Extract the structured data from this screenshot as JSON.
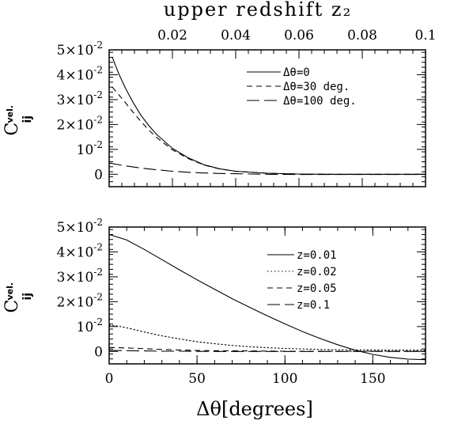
{
  "chart_data": [
    {
      "type": "line",
      "panel": "top",
      "title": "",
      "xlabel": "",
      "top_axis_label": "upper redshift z₂",
      "top_axis_ticks": [
        "0.02",
        "0.04",
        "0.06",
        "0.08",
        "0.1"
      ],
      "top_axis_tick_values": [
        0.02,
        0.04,
        0.06,
        0.08,
        0.1
      ],
      "top_axis_range": [
        0.0,
        0.1
      ],
      "ylabel": "C",
      "ylabel_sup": "vel.",
      "ylabel_sub": "ij",
      "ylim": [
        -0.005,
        0.05
      ],
      "y_ticks": [
        {
          "value": 0.05,
          "mantissa": "5×10",
          "exponent": "-2"
        },
        {
          "value": 0.04,
          "mantissa": "4×10",
          "exponent": "-2"
        },
        {
          "value": 0.03,
          "mantissa": "3×10",
          "exponent": "-2"
        },
        {
          "value": 0.02,
          "mantissa": "2×10",
          "exponent": "-2"
        },
        {
          "value": 0.01,
          "mantissa": "10",
          "exponent": "-2"
        },
        {
          "value": 0.0,
          "mantissa": "0",
          "exponent": ""
        }
      ],
      "legend_position": "top-right",
      "series": [
        {
          "name": "Δθ=0",
          "line_style": "solid",
          "x": [
            0.001,
            0.003,
            0.005,
            0.0075,
            0.01,
            0.0125,
            0.015,
            0.02,
            0.025,
            0.03,
            0.035,
            0.04,
            0.05,
            0.06,
            0.07,
            0.08,
            0.09,
            0.1
          ],
          "y": [
            0.047,
            0.0405,
            0.035,
            0.029,
            0.0238,
            0.0196,
            0.016,
            0.0104,
            0.0066,
            0.0038,
            0.0022,
            0.0012,
            0.0004,
            0.0001,
            0.0,
            0.0,
            0.0,
            0.0
          ]
        },
        {
          "name": "Δθ=30 deg.",
          "line_style": "dashed",
          "x": [
            0.001,
            0.003,
            0.005,
            0.0075,
            0.01,
            0.0125,
            0.015,
            0.02,
            0.025,
            0.03,
            0.035,
            0.04,
            0.05,
            0.06,
            0.07,
            0.08,
            0.09,
            0.1
          ],
          "y": [
            0.035,
            0.032,
            0.029,
            0.025,
            0.0213,
            0.0178,
            0.0148,
            0.0098,
            0.0063,
            0.0037,
            0.0021,
            0.0012,
            0.0004,
            0.0001,
            0.0,
            0.0,
            0.0,
            0.0
          ]
        },
        {
          "name": "Δθ=100 deg.",
          "line_style": "long-dashed",
          "x": [
            0.0,
            0.005,
            0.01,
            0.015,
            0.02,
            0.025,
            0.03,
            0.035,
            0.04,
            0.05,
            0.06,
            0.07,
            0.08,
            0.09,
            0.1
          ],
          "y": [
            0.0045,
            0.0034,
            0.0025,
            0.0018,
            0.0012,
            0.0008,
            0.0005,
            0.0003,
            0.0002,
            0.0,
            -0.0001,
            -0.0001,
            -0.0001,
            -0.0001,
            -0.0001
          ]
        }
      ]
    },
    {
      "type": "line",
      "panel": "bottom",
      "title": "",
      "xlabel": "Δθ[degrees]",
      "xlim": [
        0,
        180
      ],
      "x_ticks": [
        "0",
        "50",
        "100",
        "150"
      ],
      "x_tick_values": [
        0,
        50,
        100,
        150
      ],
      "ylabel": "C",
      "ylabel_sup": "vel.",
      "ylabel_sub": "ij",
      "ylim": [
        -0.005,
        0.05
      ],
      "y_ticks": [
        {
          "value": 0.05,
          "mantissa": "5×10",
          "exponent": "-2"
        },
        {
          "value": 0.04,
          "mantissa": "4×10",
          "exponent": "-2"
        },
        {
          "value": 0.03,
          "mantissa": "3×10",
          "exponent": "-2"
        },
        {
          "value": 0.02,
          "mantissa": "2×10",
          "exponent": "-2"
        },
        {
          "value": 0.01,
          "mantissa": "10",
          "exponent": "-2"
        },
        {
          "value": 0.0,
          "mantissa": "0",
          "exponent": ""
        }
      ],
      "legend_position": "center-right",
      "series": [
        {
          "name": "z=0.01",
          "line_style": "solid",
          "x": [
            0,
            10,
            20,
            30,
            40,
            50,
            60,
            70,
            80,
            90,
            100,
            110,
            120,
            130,
            140,
            150,
            160,
            170,
            180
          ],
          "y": [
            0.047,
            0.0448,
            0.041,
            0.0369,
            0.0328,
            0.0288,
            0.025,
            0.0212,
            0.0177,
            0.0143,
            0.0111,
            0.008,
            0.0052,
            0.0027,
            0.0005,
            -0.0012,
            -0.0024,
            -0.0031,
            -0.0033
          ]
        },
        {
          "name": "z=0.02",
          "line_style": "dotted",
          "x": [
            0,
            5,
            10,
            20,
            30,
            40,
            50,
            60,
            70,
            80,
            90,
            100,
            110,
            120,
            130,
            140,
            150,
            160,
            170,
            180
          ],
          "y": [
            0.0105,
            0.0102,
            0.0095,
            0.0078,
            0.0063,
            0.005,
            0.0039,
            0.0031,
            0.0024,
            0.0019,
            0.0015,
            0.0012,
            0.001,
            0.0008,
            0.0007,
            0.0006,
            0.0006,
            0.0005,
            0.0005,
            0.0005
          ]
        },
        {
          "name": "z=0.05",
          "line_style": "dashed",
          "x": [
            0,
            10,
            20,
            30,
            40,
            50,
            60,
            80,
            100,
            120,
            140,
            160,
            180
          ],
          "y": [
            0.0016,
            0.0014,
            0.0011,
            0.0008,
            0.0006,
            0.0004,
            0.0003,
            0.0002,
            0.0001,
            0.0001,
            0.0001,
            0.0001,
            0.0001
          ]
        },
        {
          "name": "z=0.1",
          "line_style": "long-dashed",
          "x": [
            0,
            10,
            20,
            30,
            40,
            60,
            80,
            100,
            120,
            140,
            160,
            180
          ],
          "y": [
            0.0004,
            0.0003,
            0.0002,
            0.0001,
            0.0001,
            0.0,
            0.0,
            0.0,
            0.0,
            0.0,
            0.0,
            0.0
          ]
        }
      ]
    }
  ]
}
